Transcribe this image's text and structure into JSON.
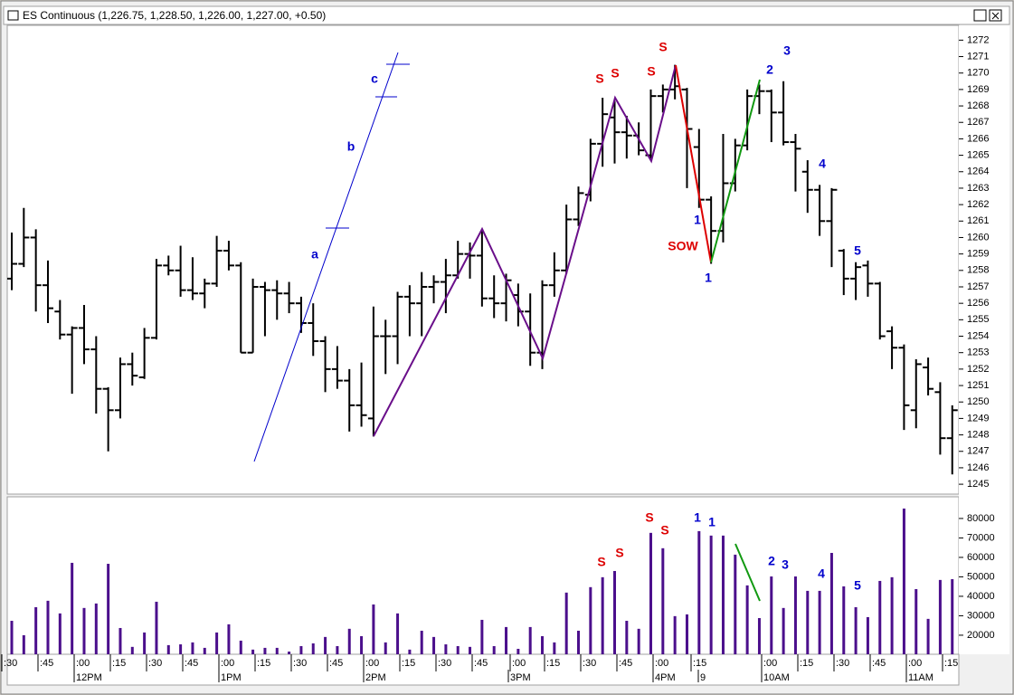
{
  "title": "ES Continuous (1,226.75, 1,228.50, 1,226.00, 1,227.00, +0.50)",
  "x_axis": {
    "minor": [
      ":30",
      ":45",
      ":00",
      ":15",
      ":30",
      ":45",
      ":00",
      ":15",
      ":30",
      ":45",
      ":00",
      ":15",
      ":30",
      ":45",
      ":00",
      ":15",
      ":30",
      ":45",
      ":00",
      ":15",
      ":00",
      ":15",
      ":30",
      ":45",
      ":00",
      ":15"
    ],
    "major": [
      "12PM",
      "1PM",
      "2PM",
      "3PM",
      "4PM",
      "9",
      "10AM",
      "11AM"
    ]
  },
  "chart_data": [
    {
      "type": "ohlc",
      "color": "#000000",
      "ylim": [
        1244.4,
        1272.9
      ],
      "yticks": [
        1245,
        1246,
        1247,
        1248,
        1249,
        1250,
        1251,
        1252,
        1253,
        1254,
        1255,
        1256,
        1257,
        1258,
        1259,
        1260,
        1261,
        1262,
        1263,
        1264,
        1265,
        1266,
        1267,
        1268,
        1269,
        1270,
        1271,
        1272
      ],
      "open": [
        1257.5,
        1258.4,
        1260.0,
        1257.1,
        1255.5,
        1254.1,
        1254.5,
        1253.2,
        1250.8,
        1249.5,
        1252.3,
        1251.5,
        1253.9,
        1258.3,
        1258.0,
        1256.8,
        1256.6,
        1257.2,
        1259.2,
        1258.3,
        1253.0,
        1257.0,
        1256.8,
        1256.6,
        1256.0,
        1254.8,
        1253.7,
        1252.0,
        1251.3,
        1249.8,
        1249.0,
        1254.0,
        1254.0,
        1256.4,
        1256.0,
        1257.0,
        1257.3,
        1257.7,
        1259.0,
        1258.9,
        1256.3,
        1256.0,
        1256.5,
        1255.5,
        1253.0,
        1257.1,
        1258.0,
        1261.1,
        1262.6,
        1265.7,
        1267.3,
        1266.4,
        1266.2,
        1265.0,
        1268.6,
        1269.0,
        1269.0,
        1265.5,
        1262.3,
        1260.4,
        1263.3,
        1265.6,
        1268.6,
        1268.9,
        1267.6,
        1265.8,
        1264.0,
        1262.9,
        1261.0,
        1259.2,
        1257.5,
        1258.3,
        1257.2,
        1254.3,
        1253.3,
        1249.5,
        1252.1,
        1250.6,
        1247.8
      ],
      "high": [
        1260.3,
        1261.8,
        1260.5,
        1258.6,
        1256.2,
        1254.6,
        1255.9,
        1254.0,
        1250.9,
        1252.7,
        1253.0,
        1254.5,
        1258.7,
        1258.9,
        1259.5,
        1258.8,
        1257.5,
        1260.1,
        1259.8,
        1258.5,
        1257.5,
        1257.3,
        1257.4,
        1257.3,
        1256.4,
        1256.0,
        1254.0,
        1253.4,
        1252.0,
        1252.4,
        1255.8,
        1255.0,
        1256.7,
        1257.1,
        1257.9,
        1257.7,
        1258.7,
        1259.8,
        1259.7,
        1260.5,
        1257.7,
        1257.8,
        1257.2,
        1256.6,
        1257.4,
        1259.1,
        1262.0,
        1263.1,
        1266.0,
        1268.5,
        1268.3,
        1267.4,
        1267.0,
        1269.0,
        1269.3,
        1270.5,
        1269.1,
        1266.6,
        1262.5,
        1266.3,
        1266.0,
        1269.0,
        1269.3,
        1269.0,
        1269.5,
        1266.3,
        1264.7,
        1263.2,
        1263.0,
        1259.3,
        1258.5,
        1258.6,
        1257.3,
        1254.6,
        1253.5,
        1252.6,
        1252.7,
        1251.2,
        1249.8
      ],
      "low": [
        1256.8,
        1258.2,
        1255.5,
        1254.8,
        1253.8,
        1250.5,
        1252.3,
        1249.3,
        1247.0,
        1249.0,
        1251.0,
        1251.4,
        1253.8,
        1257.7,
        1256.4,
        1256.2,
        1255.7,
        1257.0,
        1258.0,
        1253.0,
        1253.0,
        1254.0,
        1255.0,
        1255.4,
        1254.2,
        1252.8,
        1250.6,
        1250.8,
        1248.2,
        1248.5,
        1247.9,
        1251.7,
        1252.3,
        1254.0,
        1254.0,
        1256.0,
        1255.4,
        1257.5,
        1257.5,
        1255.8,
        1255.1,
        1254.9,
        1254.6,
        1252.2,
        1252.0,
        1256.4,
        1257.8,
        1260.7,
        1262.2,
        1264.3,
        1264.5,
        1264.8,
        1265.0,
        1264.8,
        1267.6,
        1268.4,
        1263.0,
        1261.8,
        1258.4,
        1259.7,
        1262.8,
        1265.3,
        1267.5,
        1265.8,
        1265.6,
        1262.8,
        1261.5,
        1260.1,
        1258.2,
        1256.5,
        1256.2,
        1256.4,
        1253.8,
        1252.0,
        1248.3,
        1248.4,
        1250.4,
        1246.8,
        1245.6
      ],
      "close": [
        1258.4,
        1260.0,
        1257.1,
        1255.7,
        1254.1,
        1254.5,
        1253.2,
        1250.8,
        1249.5,
        1252.3,
        1251.6,
        1253.9,
        1258.3,
        1258.0,
        1256.8,
        1256.6,
        1257.2,
        1259.2,
        1258.3,
        1253.0,
        1257.0,
        1256.8,
        1256.6,
        1256.0,
        1254.8,
        1253.7,
        1252.0,
        1251.3,
        1249.8,
        1249.2,
        1254.0,
        1254.0,
        1256.4,
        1256.0,
        1257.0,
        1257.3,
        1257.7,
        1259.0,
        1258.9,
        1256.3,
        1256.0,
        1257.4,
        1255.5,
        1253.0,
        1257.1,
        1258.0,
        1261.1,
        1262.7,
        1265.7,
        1267.5,
        1266.4,
        1266.2,
        1265.3,
        1268.6,
        1269.0,
        1269.2,
        1266.6,
        1262.3,
        1260.4,
        1263.3,
        1265.6,
        1268.6,
        1268.9,
        1267.6,
        1265.8,
        1265.4,
        1262.9,
        1261.0,
        1262.9,
        1257.5,
        1258.2,
        1257.2,
        1254.0,
        1253.3,
        1249.8,
        1252.3,
        1250.8,
        1247.8,
        1249.5
      ],
      "annotations": [
        {
          "text": "a",
          "color": "#0000cc"
        },
        {
          "text": "b",
          "color": "#0000cc"
        },
        {
          "text": "c",
          "color": "#0000cc"
        },
        {
          "text": "S",
          "color": "#dd0000"
        },
        {
          "text": "S",
          "color": "#dd0000"
        },
        {
          "text": "S",
          "color": "#dd0000"
        },
        {
          "text": "S",
          "color": "#dd0000"
        },
        {
          "text": "2",
          "color": "#0000cc"
        },
        {
          "text": "3",
          "color": "#0000cc"
        },
        {
          "text": "1",
          "color": "#0000cc"
        },
        {
          "text": "SOW",
          "color": "#dd0000"
        },
        {
          "text": "1",
          "color": "#0000cc"
        },
        {
          "text": "4",
          "color": "#0000cc"
        },
        {
          "text": "5",
          "color": "#0000cc"
        }
      ]
    },
    {
      "type": "bar",
      "color": "#4b0f8c",
      "ylim": [
        10200,
        90200
      ],
      "yticks": [
        20000,
        30000,
        40000,
        50000,
        60000,
        70000,
        80000
      ],
      "values": [
        27400,
        20000,
        34400,
        37700,
        31200,
        57200,
        34000,
        36300,
        56700,
        23700,
        14000,
        21400,
        37200,
        14900,
        15300,
        16300,
        13500,
        21400,
        25600,
        17200,
        12600,
        13500,
        13500,
        11600,
        14400,
        15800,
        19100,
        14400,
        23300,
        19500,
        35800,
        16300,
        31200,
        12600,
        22300,
        19100,
        15300,
        14400,
        14000,
        27900,
        14400,
        24200,
        13000,
        24200,
        19500,
        16300,
        41900,
        22300,
        44700,
        49800,
        53000,
        27400,
        23300,
        72600,
        64700,
        29800,
        30700,
        73500,
        71200,
        71200,
        61400,
        45600,
        28800,
        50200,
        34000,
        50200,
        42800,
        42800,
        62300,
        45100,
        34400,
        29300,
        47900,
        49800,
        85100,
        43700,
        28400,
        48400,
        48800
      ],
      "annotations": [
        {
          "text": "S",
          "color": "#dd0000"
        },
        {
          "text": "S",
          "color": "#dd0000"
        },
        {
          "text": "S",
          "color": "#dd0000"
        },
        {
          "text": "S",
          "color": "#dd0000"
        },
        {
          "text": "1",
          "color": "#0000cc"
        },
        {
          "text": "1",
          "color": "#0000cc"
        },
        {
          "text": "2",
          "color": "#0000cc"
        },
        {
          "text": "3",
          "color": "#0000cc"
        },
        {
          "text": "4",
          "color": "#0000cc"
        },
        {
          "text": "5",
          "color": "#0000cc"
        }
      ]
    }
  ]
}
